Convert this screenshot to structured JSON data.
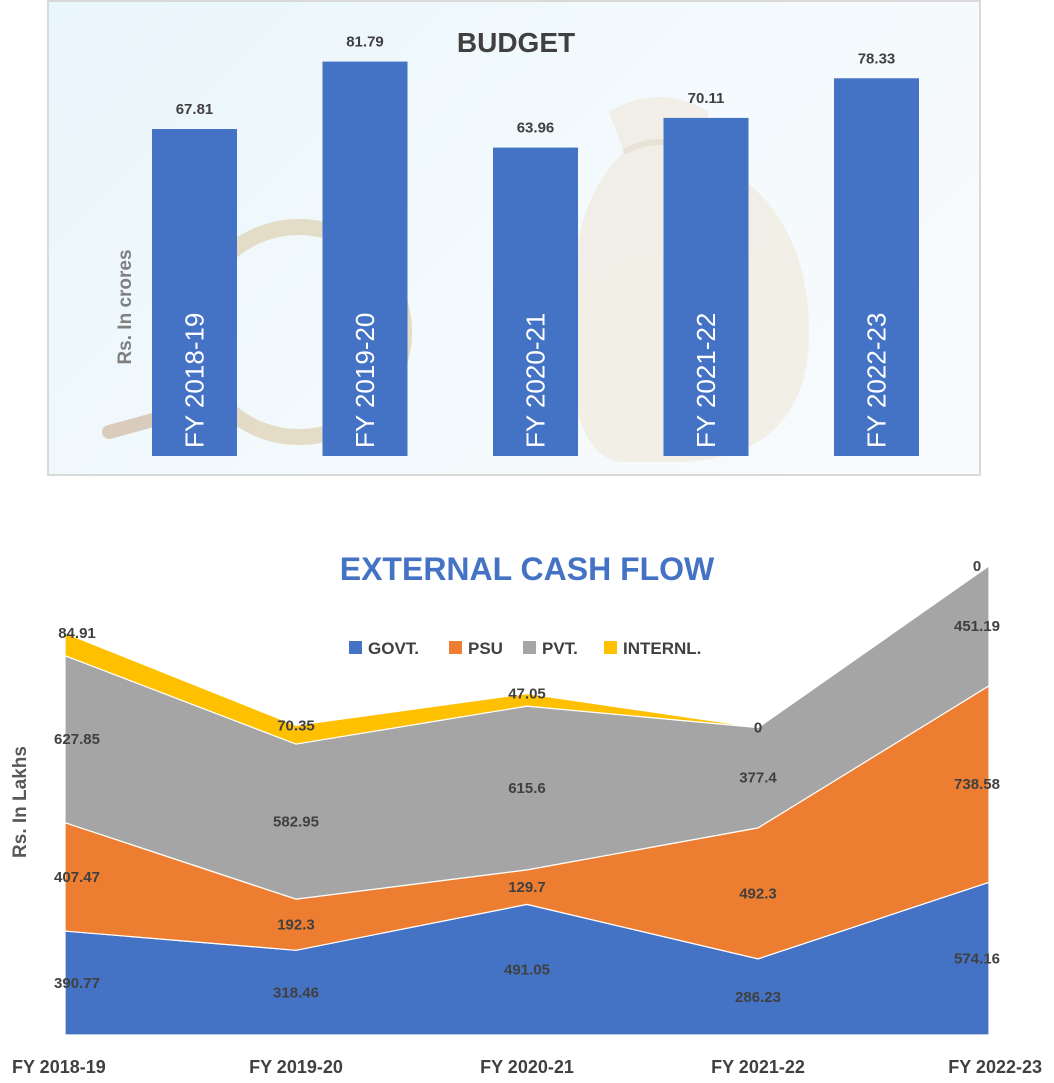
{
  "chart_data": [
    {
      "type": "bar",
      "title": "BUDGET",
      "ylabel": "Rs. In crores",
      "categories": [
        "FY 2018-19",
        "FY 2019-20",
        "FY 2020-21",
        "FY 2021-22",
        "FY 2022-23"
      ],
      "values": [
        67.81,
        81.79,
        63.96,
        70.11,
        78.33
      ],
      "value_labels": [
        "67.81",
        "81.79",
        "63.96",
        "70.11",
        "78.33"
      ],
      "ylim": [
        0,
        90
      ],
      "bar_color": "#4472c4",
      "grid": false,
      "category_labels_inside_bars": true
    },
    {
      "type": "area",
      "stacked": true,
      "title": "EXTERNAL CASH FLOW",
      "ylabel": "Rs. In Lakhs",
      "categories": [
        "FY 2018-19",
        "FY 2019-20",
        "FY 2020-21",
        "FY 2021-22",
        "FY 2022-23"
      ],
      "legend_position": "top",
      "grid": false,
      "ylim": [
        0,
        1800
      ],
      "series": [
        {
          "name": "GOVT.",
          "color": "#4472c4",
          "values": [
            390.77,
            318.46,
            491.05,
            286.23,
            574.16
          ],
          "labels": [
            "390.77",
            "318.46",
            "491.05",
            "286.23",
            "574.16"
          ]
        },
        {
          "name": "PSU",
          "color": "#ed7d31",
          "values": [
            407.47,
            192.3,
            129.7,
            492.3,
            738.58
          ],
          "labels": [
            "407.47",
            "192.3",
            "129.7",
            "492.3",
            "738.58"
          ]
        },
        {
          "name": "PVT.",
          "color": "#a5a5a5",
          "values": [
            627.85,
            582.95,
            615.6,
            377.4,
            451.19
          ],
          "labels": [
            "627.85",
            "582.95",
            "615.6",
            "377.4",
            "451.19"
          ]
        },
        {
          "name": "INTERNL.",
          "color": "#ffc000",
          "values": [
            84.91,
            70.35,
            47.05,
            0,
            0
          ],
          "labels": [
            "84.91",
            "70.35",
            "47.05",
            "0",
            "0"
          ]
        }
      ]
    }
  ]
}
